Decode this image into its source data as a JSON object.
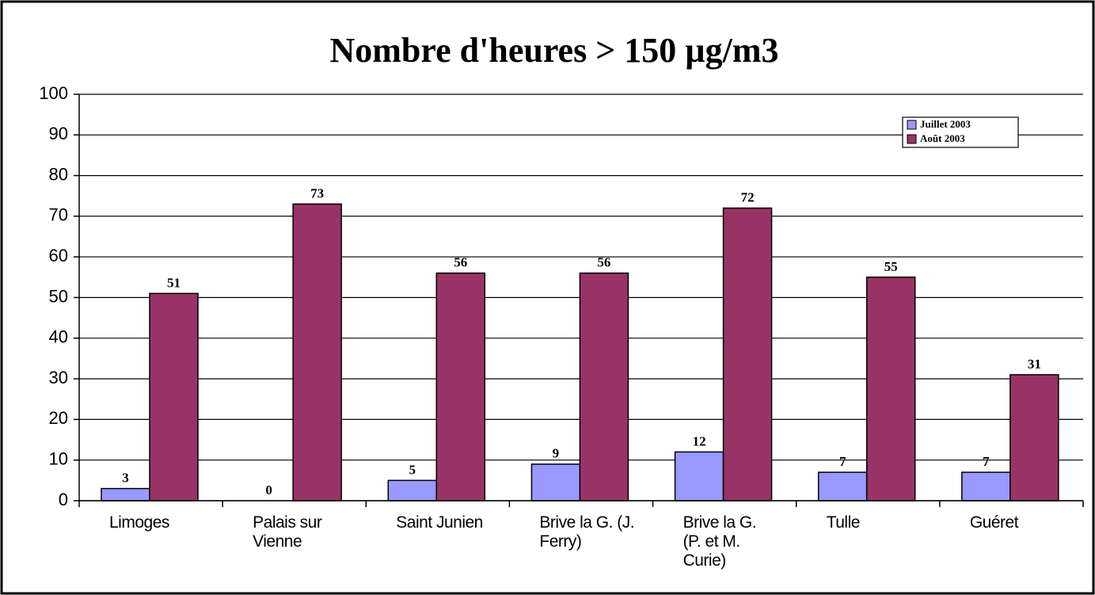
{
  "chart_data": {
    "type": "bar",
    "title": "Nombre d'heures > 150 µg/m3",
    "categories": [
      "Limoges",
      "Palais sur Vienne",
      "Saint Junien",
      "Brive la G. (J. Ferry)",
      "Brive la G. (P. et M. Curie)",
      "Tulle",
      "Guéret"
    ],
    "series": [
      {
        "name": "Juillet 2003",
        "color": "#9999ff",
        "values": [
          3,
          0,
          5,
          9,
          12,
          7,
          7
        ]
      },
      {
        "name": "Août 2003",
        "color": "#993366",
        "values": [
          51,
          73,
          56,
          56,
          72,
          55,
          31
        ]
      }
    ],
    "ylim": [
      0,
      100
    ],
    "yticks": [
      0,
      10,
      20,
      30,
      40,
      50,
      60,
      70,
      80,
      90,
      100
    ],
    "grid": true,
    "legend": "top-right"
  }
}
